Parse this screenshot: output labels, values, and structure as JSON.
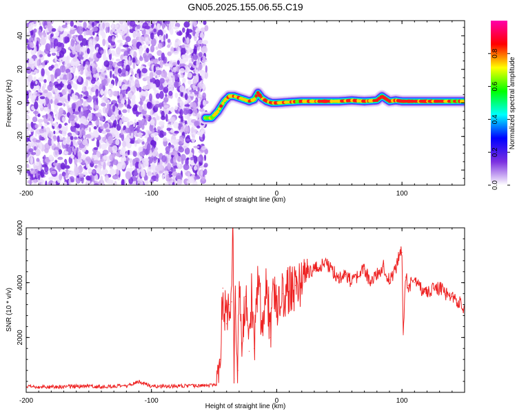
{
  "title": "GN05.2025.155.06.55.C19",
  "chart_data": [
    {
      "type": "heatmap",
      "xlabel": "Height of straight line (km)",
      "ylabel": "Frequency (Hz)",
      "xlim": [
        -200,
        150
      ],
      "ylim": [
        -49,
        49
      ],
      "xticks": [
        -200,
        -100,
        0,
        100
      ],
      "yticks": [
        -40,
        -20,
        0,
        20,
        40
      ],
      "colorbar": {
        "label": "Normalized spectral amplitude",
        "range": [
          0,
          1
        ],
        "ticks": [
          "0.0",
          "0.2",
          "0.4",
          "0.6",
          "0.8"
        ],
        "colormap": [
          "#ffffff",
          "#7b2fe0",
          "#0000ff",
          "#00ffff",
          "#00ff00",
          "#ffff00",
          "#ff0000",
          "#ff00aa"
        ]
      },
      "noise_region_x": [
        -200,
        -56
      ],
      "trace": {
        "x": [
          -57,
          -52,
          -47,
          -42,
          -38,
          -34,
          -30,
          -26,
          -22,
          -18,
          -15,
          -12,
          -8,
          -4,
          0,
          10,
          20,
          30,
          40,
          50,
          60,
          70,
          80,
          84,
          90,
          95,
          100,
          110,
          120,
          130,
          140,
          150
        ],
        "frequency_hz": [
          -9,
          -9,
          -5,
          1,
          4,
          4,
          3,
          2,
          1,
          2,
          6,
          3,
          1,
          0,
          0,
          0.5,
          1,
          1,
          1,
          1,
          1.5,
          1,
          1.5,
          4,
          1,
          1.5,
          1,
          1,
          1,
          1,
          1,
          1
        ],
        "amplitude": [
          0.7,
          0.75,
          0.8,
          0.85,
          0.9,
          0.95,
          0.9,
          0.8,
          0.85,
          0.9,
          0.95,
          0.9,
          0.85,
          0.9,
          0.9,
          0.85,
          0.8,
          0.85,
          0.85,
          0.85,
          0.9,
          0.9,
          0.85,
          0.95,
          0.9,
          0.85,
          0.9,
          0.9,
          0.95,
          0.85,
          0.8,
          0.75
        ]
      }
    },
    {
      "type": "line",
      "xlabel": "Height of straight line (km)",
      "ylabel": "SNR (10 * v/v)",
      "xlim": [
        -200,
        150
      ],
      "ylim": [
        0,
        6000
      ],
      "xticks": [
        -200,
        -100,
        0,
        100
      ],
      "yticks": [
        2000,
        4000,
        6000
      ],
      "color": "#ee2222",
      "series": [
        {
          "x": [
            -200,
            -180,
            -160,
            -140,
            -120,
            -110,
            -100,
            -80,
            -60,
            -48,
            -45,
            -43,
            -40,
            -38,
            -36,
            -35,
            -34,
            -33,
            -31,
            -30,
            -28,
            -25,
            -22,
            -20,
            -18,
            -15,
            -12,
            -10,
            -8,
            -5,
            -2,
            0,
            5,
            10,
            15,
            20,
            25,
            30,
            35,
            40,
            45,
            50,
            55,
            60,
            65,
            70,
            75,
            80,
            85,
            90,
            95,
            98,
            100,
            101,
            103,
            105,
            110,
            115,
            120,
            125,
            130,
            135,
            140,
            145,
            150
          ],
          "y": [
            200,
            200,
            220,
            210,
            230,
            400,
            220,
            230,
            240,
            250,
            1200,
            3800,
            2500,
            3200,
            3300,
            5900,
            500,
            3600,
            800,
            3800,
            1800,
            3500,
            1500,
            3700,
            1600,
            4200,
            2600,
            2900,
            4000,
            2000,
            3900,
            2800,
            3600,
            3700,
            3900,
            4000,
            4400,
            4500,
            4600,
            4700,
            4400,
            4200,
            4300,
            4000,
            4200,
            4500,
            4000,
            4300,
            4600,
            4100,
            4500,
            5000,
            5100,
            2100,
            4200,
            3900,
            4000,
            3800,
            3600,
            3800,
            3800,
            3600,
            3500,
            3300,
            3100
          ]
        }
      ]
    }
  ]
}
